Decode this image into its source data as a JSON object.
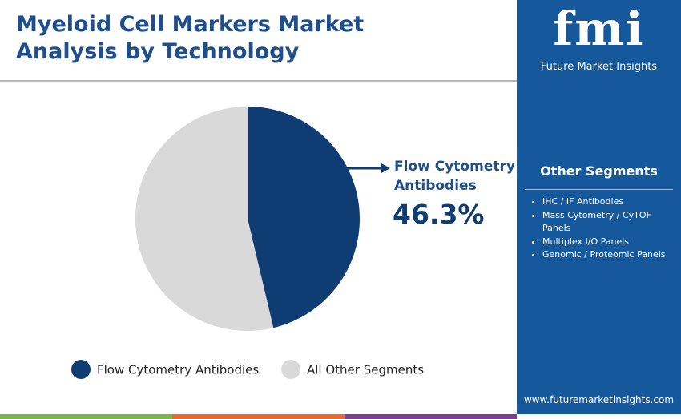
{
  "chart_data": {
    "type": "pie",
    "title": "Myeloid Cell Markers Market Analysis by Technology",
    "categories": [
      "Flow Cytometry Antibodies",
      "All Other Segments"
    ],
    "values": [
      46.3,
      53.7
    ],
    "value_labels": [
      "46.3%",
      null
    ],
    "colors": [
      "#0f3d73",
      "#d9d9d9"
    ]
  },
  "sidebar": {
    "brand": "fmi",
    "brand_name": "Future Market Insights",
    "heading": "Other Segments",
    "items": [
      "IHC / IF Antibodies",
      "Mass Cytometry / CyTOF Panels",
      "Multiplex I/O Panels",
      "Genomic / Proteomic Panels"
    ],
    "url": "www.futuremarketinsights.com"
  }
}
